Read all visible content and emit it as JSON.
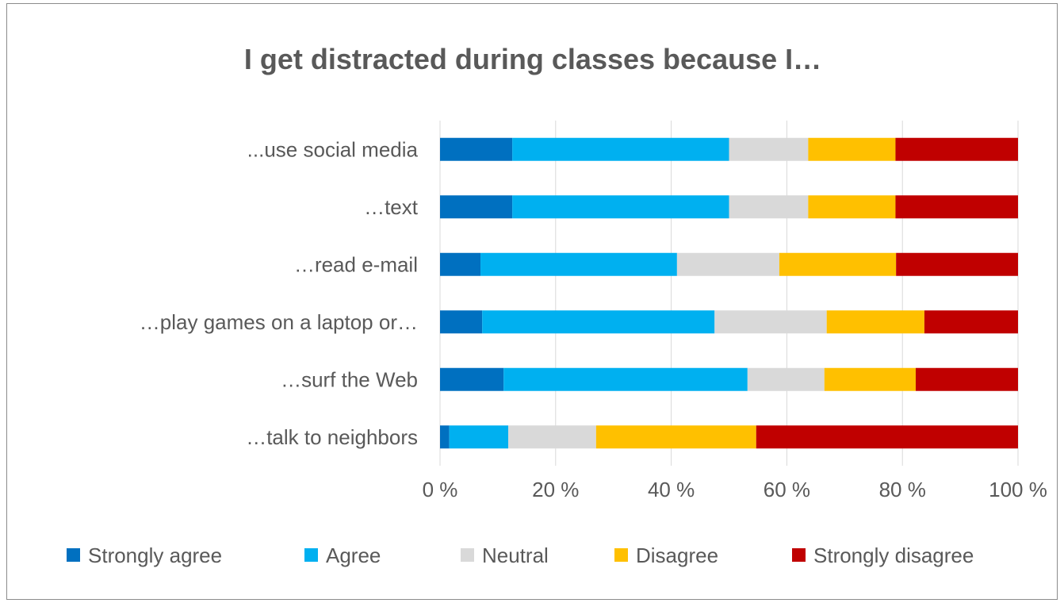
{
  "chart_data": {
    "type": "bar",
    "orientation": "horizontal",
    "stacked": "percent",
    "title": "I get distracted during classes because I…",
    "categories": [
      "...use social media",
      "…text",
      "…read e-mail",
      "…play games on a laptop or…",
      "…surf the Web",
      "…talk to neighbors"
    ],
    "series": [
      {
        "name": "Strongly agree",
        "color": "#0070c0",
        "values": [
          12.5,
          12.5,
          7,
          7.3,
          11,
          1.6
        ]
      },
      {
        "name": "Agree",
        "color": "#00b0f0",
        "values": [
          37.5,
          37.5,
          34,
          40.2,
          42.2,
          10.2
        ]
      },
      {
        "name": "Neutral",
        "color": "#d9d9d9",
        "values": [
          13.7,
          13.7,
          17.7,
          19.4,
          13.3,
          15.2
        ]
      },
      {
        "name": "Disagree",
        "color": "#ffc000",
        "values": [
          15.1,
          15.1,
          20.2,
          16.9,
          15.8,
          27.7
        ]
      },
      {
        "name": "Strongly disagree",
        "color": "#c00000",
        "values": [
          21.2,
          21.2,
          21.1,
          16.2,
          17.7,
          45.3
        ]
      }
    ],
    "xlim": [
      0,
      100
    ],
    "xticks": [
      "0 %",
      "20 %",
      "40 %",
      "60 %",
      "80 %",
      "100 %"
    ],
    "grid": true,
    "legend": "bottom"
  }
}
